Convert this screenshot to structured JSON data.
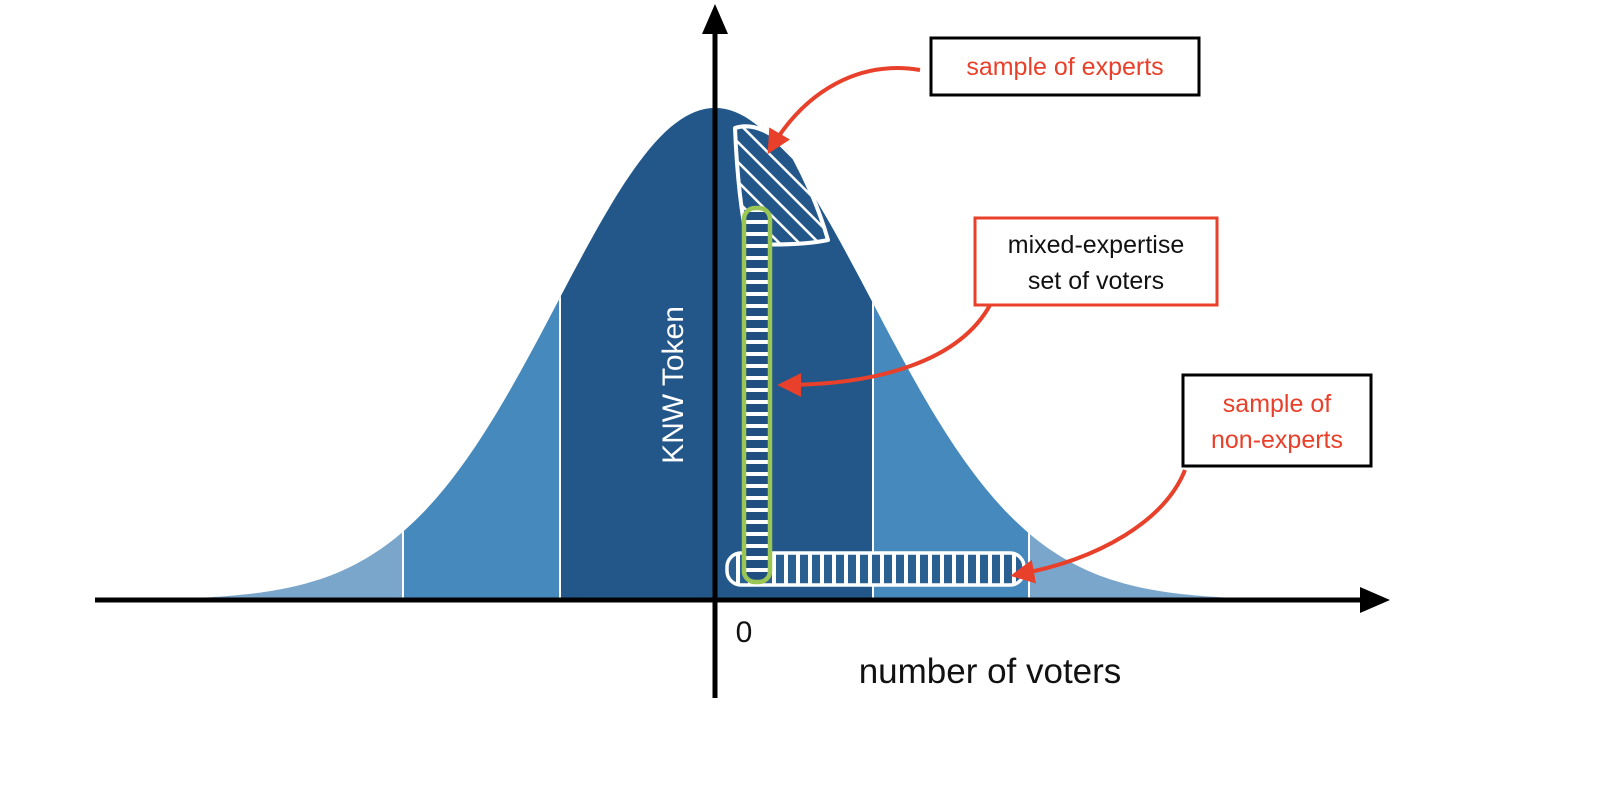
{
  "diagram": {
    "y_axis_label": "KNW Token",
    "x_axis_label": "number of voters",
    "origin_label": "0",
    "callouts": {
      "experts": {
        "text": "sample of experts"
      },
      "mixed": {
        "line1": "mixed-expertise",
        "line2": "set of voters"
      },
      "non_experts": {
        "line1": "sample of",
        "line2": "non-experts"
      }
    },
    "colors": {
      "band_inner": "#23578a",
      "band_middle": "#4689bd",
      "band_outer": "#7ba6cb",
      "axis": "#000000",
      "callout_red": "#e8402a",
      "mixed_green": "#9ac655",
      "hatch_white": "#ffffff"
    }
  }
}
